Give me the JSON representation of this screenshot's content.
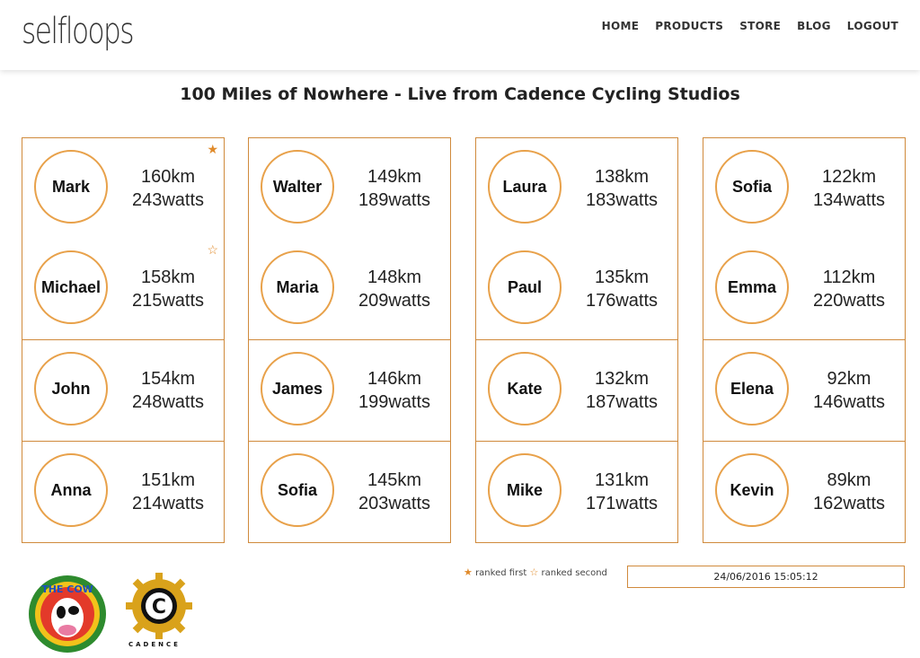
{
  "header": {
    "logo_text": "selfloops",
    "nav": [
      "HOME",
      "PRODUCTS",
      "STORE",
      "BLOG",
      "LOGOUT"
    ]
  },
  "page_title": "100 Miles of Nowhere - Live from Cadence Cycling Studios",
  "riders": [
    [
      {
        "name": "Mark",
        "distance": "160km",
        "power": "243watts",
        "rank": "first"
      },
      {
        "name": "Michael",
        "distance": "158km",
        "power": "215watts",
        "rank": "second"
      },
      {
        "name": "John",
        "distance": "154km",
        "power": "248watts"
      },
      {
        "name": "Anna",
        "distance": "151km",
        "power": "214watts"
      }
    ],
    [
      {
        "name": "Walter",
        "distance": "149km",
        "power": "189watts"
      },
      {
        "name": "Maria",
        "distance": "148km",
        "power": "209watts"
      },
      {
        "name": "James",
        "distance": "146km",
        "power": "199watts"
      },
      {
        "name": "Sofia",
        "distance": "145km",
        "power": "203watts"
      }
    ],
    [
      {
        "name": "Laura",
        "distance": "138km",
        "power": "183watts"
      },
      {
        "name": "Paul",
        "distance": "135km",
        "power": "176watts"
      },
      {
        "name": "Kate",
        "distance": "132km",
        "power": "187watts"
      },
      {
        "name": "Mike",
        "distance": "131km",
        "power": "171watts"
      }
    ],
    [
      {
        "name": "Sofia",
        "distance": "122km",
        "power": "134watts"
      },
      {
        "name": "Emma",
        "distance": "112km",
        "power": "220watts"
      },
      {
        "name": "Elena",
        "distance": "92km",
        "power": "146watts"
      },
      {
        "name": "Kevin",
        "distance": "89km",
        "power": "162watts"
      }
    ]
  ],
  "legend": {
    "first_label": "ranked first",
    "second_label": "ranked second"
  },
  "timestamp": "24/06/2016 15:05:12",
  "sponsors": {
    "cow_logo_text": "THE COW",
    "cadence_logo_letter": "C",
    "cadence_logo_text": "CADENCE"
  },
  "colors": {
    "accent": "#e08a2a",
    "border": "#d08a3c"
  }
}
